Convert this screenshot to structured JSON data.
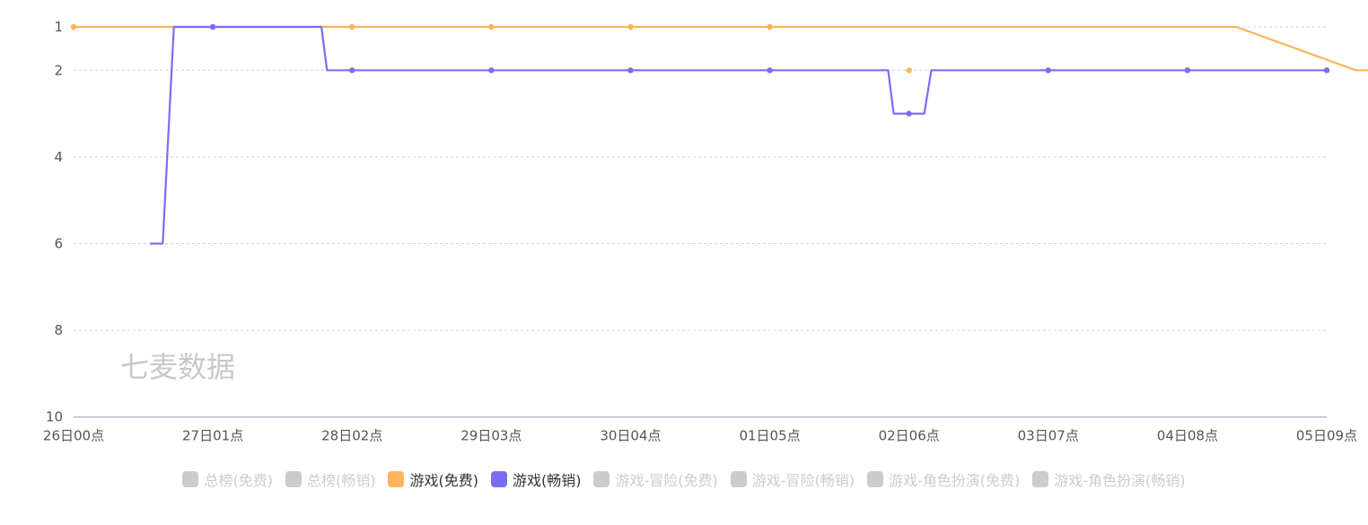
{
  "watermark": "七麦数据",
  "chart_data": {
    "type": "line",
    "y_inverted": true,
    "ylim": [
      10,
      0.5
    ],
    "yticks": [
      1,
      2,
      4,
      6,
      8,
      10
    ],
    "grid": "horizontal-dashed",
    "xlabels": [
      "26日00点",
      "27日01点",
      "28日02点",
      "29日03点",
      "30日04点",
      "01日05点",
      "02日06点",
      "03日07点",
      "04日08点",
      "05日09点"
    ],
    "series": [
      {
        "name": "游戏(免费)",
        "color": "#ffb45c",
        "x": [
          0,
          8.35,
          9.21,
          9.51,
          10.45,
          14.05,
          18.2
        ],
        "values": [
          1,
          1,
          2,
          2,
          2,
          2,
          2
        ],
        "dots": [
          0,
          1,
          2,
          3,
          4,
          5,
          6,
          7,
          8,
          9
        ]
      },
      {
        "name": "游戏(畅销)",
        "color": "#7b6df3",
        "x": [
          0.55,
          0.64,
          0.64,
          0.72,
          1.78,
          1.78,
          1.82,
          5.85,
          5.89,
          6.11,
          6.16,
          9.0
        ],
        "values": [
          6,
          6,
          6,
          1,
          1,
          1,
          2,
          2,
          3,
          3,
          2,
          2
        ],
        "dots": [
          1,
          2,
          3,
          4,
          5,
          6,
          7,
          8,
          9
        ],
        "dot_values": [
          1,
          2,
          2,
          2,
          2,
          3,
          2,
          2,
          2
        ]
      }
    ]
  },
  "legend": [
    {
      "label": "总榜(免费)",
      "active": false,
      "color": "#cccccc"
    },
    {
      "label": "总榜(畅销)",
      "active": false,
      "color": "#cccccc"
    },
    {
      "label": "游戏(免费)",
      "active": true,
      "color": "#ffb45c"
    },
    {
      "label": "游戏(畅销)",
      "active": true,
      "color": "#7b6df3"
    },
    {
      "label": "游戏-冒险(免费)",
      "active": false,
      "color": "#cccccc"
    },
    {
      "label": "游戏-冒险(畅销)",
      "active": false,
      "color": "#cccccc"
    },
    {
      "label": "游戏-角色扮演(免费)",
      "active": false,
      "color": "#cccccc"
    },
    {
      "label": "游戏-角色扮演(畅销)",
      "active": false,
      "color": "#cccccc"
    }
  ]
}
